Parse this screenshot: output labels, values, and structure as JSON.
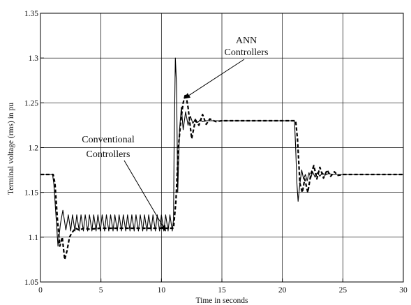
{
  "chart_data": {
    "type": "line",
    "title": "",
    "xlabel": "Time in seconds",
    "ylabel": "Terminal voltage (rms) in pu",
    "xlim": [
      0,
      30
    ],
    "ylim": [
      1.05,
      1.35
    ],
    "grid": true,
    "x_ticks": [
      "0",
      "5",
      "10",
      "15",
      "20",
      "25",
      "30"
    ],
    "y_ticks": [
      "1.05",
      "1.1",
      "1.15",
      "1.2",
      "1.25",
      "1.3",
      "1.35"
    ],
    "annotations": [
      {
        "lines": [
          "ANN",
          "Controllers"
        ],
        "points_to": [
          11.9,
          1.255
        ]
      },
      {
        "lines": [
          "Conventional",
          "Controllers"
        ],
        "points_to": [
          10.35,
          1.107
        ]
      }
    ],
    "series": [
      {
        "style": "solid",
        "x": [
          0,
          1.0,
          1.1,
          1.25,
          1.45,
          1.65,
          1.85,
          2.1,
          2.3,
          2.5,
          2.65,
          2.85,
          3.0,
          3.2,
          3.35,
          3.55,
          3.7,
          3.9,
          4.05,
          4.25,
          4.4,
          4.6,
          4.75,
          4.95,
          5.1,
          5.3,
          5.45,
          5.65,
          5.8,
          6.0,
          6.15,
          6.35,
          6.5,
          6.7,
          6.85,
          7.05,
          7.2,
          7.4,
          7.55,
          7.75,
          7.9,
          8.1,
          8.25,
          8.45,
          8.6,
          8.8,
          8.95,
          9.15,
          9.3,
          9.5,
          9.65,
          9.85,
          10.0,
          10.2,
          10.35,
          10.55,
          10.7,
          10.9,
          11.0,
          11.05,
          11.15,
          11.25,
          11.35,
          11.5,
          11.65,
          11.8,
          12.0,
          12.2,
          12.4,
          12.6,
          12.8,
          13.0,
          13.2,
          13.4,
          13.6,
          14.0,
          14.5,
          15,
          16,
          17,
          18,
          19,
          20,
          21,
          21.1,
          21.2,
          21.3,
          21.45,
          21.6,
          21.75,
          21.9,
          22.05,
          22.2,
          22.35,
          22.5,
          22.7,
          22.9,
          23.1,
          23.3,
          23.5,
          23.8,
          24.2,
          24.6,
          25,
          26,
          27,
          28,
          29,
          30
        ],
        "y": [
          1.17,
          1.17,
          1.16,
          1.13,
          1.09,
          1.115,
          1.13,
          1.108,
          1.125,
          1.107,
          1.125,
          1.107,
          1.125,
          1.107,
          1.125,
          1.107,
          1.125,
          1.107,
          1.125,
          1.107,
          1.125,
          1.107,
          1.125,
          1.107,
          1.125,
          1.107,
          1.125,
          1.107,
          1.125,
          1.107,
          1.125,
          1.107,
          1.125,
          1.107,
          1.125,
          1.107,
          1.125,
          1.107,
          1.125,
          1.107,
          1.125,
          1.107,
          1.125,
          1.107,
          1.125,
          1.107,
          1.125,
          1.107,
          1.125,
          1.107,
          1.125,
          1.107,
          1.125,
          1.107,
          1.125,
          1.107,
          1.125,
          1.107,
          1.12,
          1.2,
          1.3,
          1.27,
          1.15,
          1.22,
          1.245,
          1.22,
          1.24,
          1.225,
          1.235,
          1.227,
          1.232,
          1.228,
          1.231,
          1.229,
          1.23,
          1.23,
          1.23,
          1.23,
          1.23,
          1.23,
          1.23,
          1.23,
          1.23,
          1.23,
          1.2,
          1.16,
          1.14,
          1.16,
          1.175,
          1.165,
          1.17,
          1.163,
          1.172,
          1.166,
          1.173,
          1.167,
          1.172,
          1.168,
          1.172,
          1.169,
          1.171,
          1.17,
          1.17,
          1.17,
          1.17,
          1.17,
          1.17,
          1.17,
          1.17
        ]
      },
      {
        "style": "dashed",
        "x": [
          0,
          1.05,
          1.2,
          1.4,
          1.6,
          1.8,
          2.0,
          2.2,
          2.4,
          2.6,
          2.9,
          3.2,
          3.6,
          4.0,
          5,
          6,
          7,
          8,
          9,
          10,
          10.8,
          11.0,
          11.2,
          11.4,
          11.6,
          11.8,
          12.0,
          12.2,
          12.5,
          12.8,
          13.1,
          13.4,
          13.7,
          14.0,
          14.5,
          15,
          16,
          17,
          18,
          19,
          20,
          21.1,
          21.25,
          21.45,
          21.65,
          21.85,
          22.1,
          22.35,
          22.6,
          22.85,
          23.1,
          23.4,
          23.7,
          24.0,
          24.3,
          24.6,
          25,
          26,
          27,
          28,
          29,
          30
        ],
        "y": [
          1.17,
          1.17,
          1.16,
          1.12,
          1.09,
          1.1,
          1.075,
          1.085,
          1.1,
          1.105,
          1.11,
          1.108,
          1.11,
          1.109,
          1.11,
          1.11,
          1.11,
          1.11,
          1.11,
          1.11,
          1.11,
          1.11,
          1.14,
          1.2,
          1.23,
          1.25,
          1.26,
          1.245,
          1.21,
          1.23,
          1.225,
          1.237,
          1.226,
          1.232,
          1.229,
          1.23,
          1.23,
          1.23,
          1.23,
          1.23,
          1.23,
          1.23,
          1.21,
          1.16,
          1.15,
          1.165,
          1.15,
          1.17,
          1.18,
          1.165,
          1.178,
          1.166,
          1.175,
          1.168,
          1.173,
          1.169,
          1.17,
          1.17,
          1.17,
          1.17,
          1.17,
          1.17
        ]
      }
    ]
  }
}
